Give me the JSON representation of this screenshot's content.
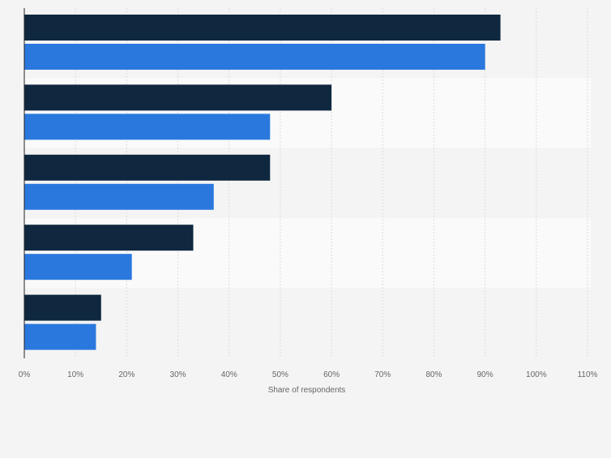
{
  "chart_data": {
    "type": "bar",
    "orientation": "horizontal",
    "categories": [
      "",
      "",
      "",
      "",
      ""
    ],
    "series": [
      {
        "values": [
          93,
          60,
          48,
          33,
          15
        ]
      },
      {
        "values": [
          90,
          48,
          37,
          21,
          14
        ]
      }
    ],
    "xlabel": "Share of respondents",
    "ylabel": "",
    "xlim": [
      0,
      110
    ],
    "x_ticks": [
      "0%",
      "10%",
      "20%",
      "30%",
      "40%",
      "50%",
      "60%",
      "70%",
      "80%",
      "90%",
      "100%",
      "110%"
    ],
    "grid": true,
    "legend": "none"
  },
  "colors": {
    "background": "#f4f4f4",
    "band_light": "#fafafa",
    "band_dark": "#f4f4f4",
    "series_1": "#0f2840",
    "series_2": "#2a78de",
    "gridline": "#dcdcdc",
    "axis": "#222222",
    "text": "#666666"
  }
}
